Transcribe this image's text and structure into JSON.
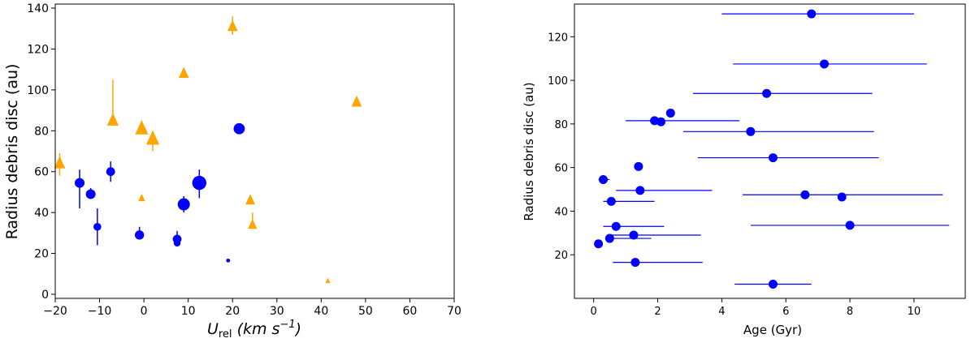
{
  "chart_data": [
    {
      "type": "scatter",
      "title": "",
      "xlabel_symbol": "U",
      "xlabel_sub": "rel",
      "xlabel_units": "(km s",
      "xlabel_exp": "−1",
      "xlabel_close": ")",
      "ylabel": "Radius debris disc (au)",
      "xlim": [
        -20,
        70
      ],
      "ylim": [
        -2,
        142
      ],
      "xticks": [
        -20,
        -10,
        0,
        10,
        20,
        30,
        40,
        50,
        60,
        70
      ],
      "yticks": [
        0,
        20,
        40,
        60,
        80,
        100,
        120,
        140
      ],
      "grid": false,
      "legend": "none",
      "colors": {
        "circles": "#0000ff",
        "triangles": "#ffa500"
      },
      "series": [
        {
          "marker": "circle",
          "points": [
            {
              "x": -14.5,
              "y": 54.5,
              "yerr_lo": 42,
              "yerr_hi": 61,
              "size": 1.0
            },
            {
              "x": -12,
              "y": 49,
              "yerr_lo": 47,
              "yerr_hi": 52,
              "size": 1.0
            },
            {
              "x": -10.5,
              "y": 33,
              "yerr_lo": 24,
              "yerr_hi": 42,
              "size": 0.8
            },
            {
              "x": -7.5,
              "y": 60,
              "yerr_lo": 55,
              "yerr_hi": 65,
              "size": 0.9
            },
            {
              "x": -1,
              "y": 29,
              "yerr_lo": 27,
              "yerr_hi": 33,
              "size": 0.95
            },
            {
              "x": 7.5,
              "y": 27,
              "yerr_lo": 26,
              "yerr_hi": 31,
              "size": 0.9
            },
            {
              "x": 7.5,
              "y": 25,
              "yerr_lo": 24,
              "yerr_hi": 26,
              "size": 0.7
            },
            {
              "x": 9,
              "y": 44,
              "yerr_lo": 40,
              "yerr_hi": 48,
              "size": 1.25
            },
            {
              "x": 12.5,
              "y": 54.5,
              "yerr_lo": 47,
              "yerr_hi": 61,
              "size": 1.45
            },
            {
              "x": 19,
              "y": 16.5,
              "yerr_lo": 16.5,
              "yerr_hi": 16.5,
              "size": 0.4
            },
            {
              "x": 21.5,
              "y": 81,
              "yerr_lo": 81,
              "yerr_hi": 81,
              "size": 1.15
            }
          ]
        },
        {
          "marker": "triangle",
          "points": [
            {
              "x": -19,
              "y": 64,
              "yerr_lo": 58,
              "yerr_hi": 69,
              "size": 1.15
            },
            {
              "x": -7,
              "y": 85,
              "yerr_lo": 85,
              "yerr_hi": 105,
              "size": 1.2
            },
            {
              "x": -0.5,
              "y": 47,
              "yerr_lo": 47,
              "yerr_hi": 47,
              "size": 0.7
            },
            {
              "x": -0.5,
              "y": 81,
              "yerr_lo": 81,
              "yerr_hi": 85,
              "size": 1.35
            },
            {
              "x": 2,
              "y": 76,
              "yerr_lo": 70,
              "yerr_hi": 80,
              "size": 1.35
            },
            {
              "x": 9,
              "y": 108,
              "yerr_lo": 108,
              "yerr_hi": 108,
              "size": 1.05
            },
            {
              "x": 20,
              "y": 131,
              "yerr_lo": 127,
              "yerr_hi": 136,
              "size": 1.05
            },
            {
              "x": 24,
              "y": 46,
              "yerr_lo": 44,
              "yerr_hi": 48,
              "size": 1.0
            },
            {
              "x": 24.5,
              "y": 34,
              "yerr_lo": 34,
              "yerr_hi": 40,
              "size": 0.95
            },
            {
              "x": 41.5,
              "y": 6.5,
              "yerr_lo": 6.5,
              "yerr_hi": 6.5,
              "size": 0.5
            },
            {
              "x": 48,
              "y": 94,
              "yerr_lo": 94,
              "yerr_hi": 94,
              "size": 1.05
            }
          ]
        }
      ]
    },
    {
      "type": "scatter",
      "title": "",
      "xlabel": "Age (Gyr)",
      "ylabel": "Radius debris disc (au)",
      "xlim": [
        -0.6,
        11.6
      ],
      "ylim": [
        0,
        135
      ],
      "xticks": [
        0,
        2,
        4,
        6,
        8,
        10
      ],
      "yticks": [
        20,
        40,
        60,
        80,
        100,
        120
      ],
      "grid": false,
      "legend": "none",
      "colors": {
        "points": "#0000ff"
      },
      "points": [
        {
          "x": 6.8,
          "y": 130.5,
          "xerr_lo": 4.0,
          "xerr_hi": 10.0
        },
        {
          "x": 7.2,
          "y": 107.5,
          "xerr_lo": 4.35,
          "xerr_hi": 10.4
        },
        {
          "x": 5.4,
          "y": 94,
          "xerr_lo": 3.1,
          "xerr_hi": 8.7
        },
        {
          "x": 2.4,
          "y": 85,
          "xerr_lo": 2.4,
          "xerr_hi": 2.4
        },
        {
          "x": 1.9,
          "y": 81.5,
          "xerr_lo": 1.0,
          "xerr_hi": 4.55
        },
        {
          "x": 2.1,
          "y": 81,
          "xerr_lo": 2.1,
          "xerr_hi": 2.1
        },
        {
          "x": 4.9,
          "y": 76.5,
          "xerr_lo": 2.8,
          "xerr_hi": 8.75
        },
        {
          "x": 5.6,
          "y": 64.5,
          "xerr_lo": 3.25,
          "xerr_hi": 8.9
        },
        {
          "x": 1.4,
          "y": 60.5,
          "xerr_lo": 1.4,
          "xerr_hi": 1.4
        },
        {
          "x": 0.3,
          "y": 54.5,
          "xerr_lo": 0.15,
          "xerr_hi": 0.5
        },
        {
          "x": 1.45,
          "y": 49.5,
          "xerr_lo": 0.7,
          "xerr_hi": 3.7
        },
        {
          "x": 6.6,
          "y": 47.5,
          "xerr_lo": 4.65,
          "xerr_hi": 10.9
        },
        {
          "x": 7.75,
          "y": 46.5,
          "xerr_lo": 7.75,
          "xerr_hi": 7.75
        },
        {
          "x": 0.55,
          "y": 44.5,
          "xerr_lo": 0.3,
          "xerr_hi": 1.9
        },
        {
          "x": 8.0,
          "y": 33.5,
          "xerr_lo": 4.9,
          "xerr_hi": 11.1
        },
        {
          "x": 0.7,
          "y": 33,
          "xerr_lo": 0.3,
          "xerr_hi": 2.2
        },
        {
          "x": 1.25,
          "y": 29,
          "xerr_lo": 0.5,
          "xerr_hi": 3.35
        },
        {
          "x": 0.5,
          "y": 27.5,
          "xerr_lo": 0.45,
          "xerr_hi": 1.8
        },
        {
          "x": 0.15,
          "y": 25,
          "xerr_lo": 0.15,
          "xerr_hi": 0.15
        },
        {
          "x": 1.3,
          "y": 16.5,
          "xerr_lo": 0.6,
          "xerr_hi": 3.4
        },
        {
          "x": 5.6,
          "y": 6.5,
          "xerr_lo": 4.4,
          "xerr_hi": 6.8
        }
      ]
    }
  ]
}
